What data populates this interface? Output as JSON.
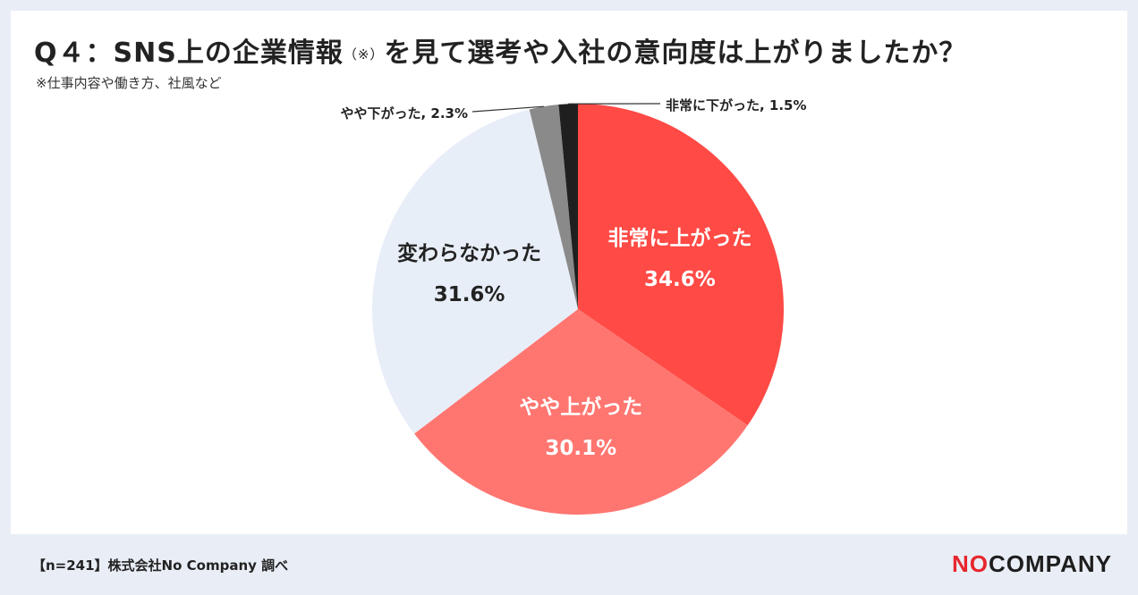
{
  "header": {
    "title": "Q４：SNS上の企業情報",
    "title_note": "（※）",
    "title_rest": "を見て選考や入社の意向度は上がりましたか？",
    "subtitle": "※仕事内容や働き方、社風など"
  },
  "footer": {
    "source": "【n=241】株式会社No Company 調べ",
    "logo_part1": "NO",
    "logo_part2": "COMPANY"
  },
  "chart_data": {
    "type": "pie",
    "categories": [
      "非常に上がった",
      "やや上がった",
      "変わらなかった",
      "やや下がった",
      "非常に下がった"
    ],
    "values": [
      34.6,
      30.1,
      31.6,
      2.3,
      1.5
    ],
    "labels": [
      "34.6%",
      "30.1%",
      "31.6%",
      "2.3%",
      "1.5%"
    ],
    "outside_labels": [
      "",
      "",
      "",
      "やや下がった, 2.3%",
      "非常に下がった, 1.5%"
    ],
    "colors": [
      "#ff4a45",
      "#ff7671",
      "#e8eef8",
      "#8a8a8a",
      "#1f1f1f"
    ],
    "start_angle_deg": 0,
    "direction": "clockwise"
  }
}
